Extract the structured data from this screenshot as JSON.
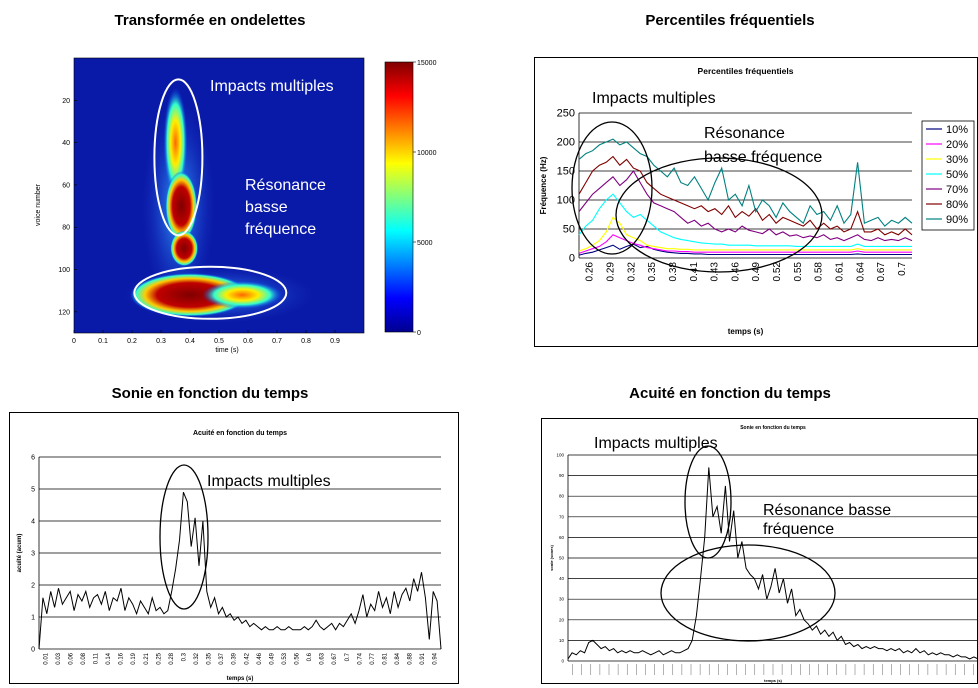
{
  "headings": {
    "wavelet": "Transformée en ondelettes",
    "percentiles": "Percentiles fréquentiels",
    "sonie": "Sonie en fonction du temps",
    "acuite": "Acuité en fonction du temps"
  },
  "chart_data": [
    {
      "type": "heatmap",
      "title": "Transformée en ondelettes",
      "xlabel": "time (s)",
      "ylabel": "voice number",
      "xlim": [
        0,
        1.0
      ],
      "ylim": [
        130,
        0
      ],
      "x_ticks": [
        "0",
        "0.1",
        "0.2",
        "0.3",
        "0.4",
        "0.5",
        "0.6",
        "0.7",
        "0.8",
        "0.9"
      ],
      "y_ticks": [
        "20",
        "40",
        "60",
        "80",
        "100",
        "120"
      ],
      "colorbar_ticks": [
        "15000",
        "10000",
        "5000",
        "0"
      ],
      "colorbar_range": [
        0,
        15000
      ],
      "annotations": [
        "Impacts multiples",
        "Résonance",
        "basse",
        "fréquence"
      ]
    },
    {
      "type": "line",
      "title": "Percentiles fréquentiels",
      "xlabel": "temps (s)",
      "ylabel": "Fréquence (Hz)",
      "ylim": [
        0,
        250
      ],
      "y_ticks": [
        "0",
        "50",
        "100",
        "150",
        "200",
        "250"
      ],
      "x_ticks": [
        "0.26",
        "0.29",
        "0.32",
        "0.35",
        "0.38",
        "0.41",
        "0.43",
        "0.46",
        "0.49",
        "0.52",
        "0.55",
        "0.58",
        "0.61",
        "0.64",
        "0.67",
        "0.7"
      ],
      "annotations": [
        "Impacts multiples",
        "Résonance",
        "basse fréquence"
      ],
      "legend_position": "right",
      "series": [
        {
          "name": "10%",
          "color": "#000080",
          "values": [
            5,
            8,
            10,
            14,
            18,
            22,
            15,
            20,
            24,
            18,
            20,
            15,
            12,
            10,
            9,
            8,
            8,
            7,
            7,
            6,
            6,
            6,
            6,
            6,
            6,
            6,
            6,
            6,
            6,
            6,
            6,
            6,
            6,
            6,
            6,
            6,
            6,
            6,
            6,
            6,
            6,
            7,
            6,
            6,
            6,
            6,
            6,
            6,
            6,
            6
          ]
        },
        {
          "name": "20%",
          "color": "#ff00ff",
          "values": [
            8,
            12,
            16,
            20,
            28,
            40,
            35,
            30,
            25,
            22,
            18,
            16,
            14,
            12,
            12,
            11,
            11,
            10,
            10,
            10,
            10,
            10,
            10,
            10,
            10,
            10,
            10,
            10,
            10,
            10,
            10,
            10,
            10,
            10,
            10,
            10,
            10,
            10,
            10,
            10,
            10,
            12,
            10,
            10,
            10,
            10,
            10,
            10,
            10,
            10
          ]
        },
        {
          "name": "30%",
          "color": "#ffff00",
          "values": [
            12,
            16,
            22,
            30,
            45,
            70,
            60,
            40,
            35,
            30,
            22,
            20,
            18,
            16,
            16,
            15,
            15,
            14,
            14,
            14,
            14,
            14,
            14,
            14,
            14,
            14,
            14,
            14,
            14,
            14,
            14,
            14,
            14,
            14,
            14,
            14,
            14,
            14,
            14,
            14,
            14,
            16,
            14,
            14,
            14,
            14,
            14,
            14,
            14,
            14
          ]
        },
        {
          "name": "50%",
          "color": "#00ffff",
          "values": [
            40,
            55,
            65,
            85,
            100,
            110,
            95,
            80,
            70,
            75,
            65,
            55,
            45,
            40,
            35,
            32,
            30,
            28,
            26,
            25,
            24,
            24,
            22,
            22,
            22,
            22,
            21,
            21,
            21,
            21,
            21,
            21,
            20,
            20,
            20,
            20,
            20,
            20,
            20,
            20,
            20,
            24,
            20,
            20,
            20,
            20,
            20,
            20,
            20,
            20
          ]
        },
        {
          "name": "70%",
          "color": "#800080",
          "values": [
            80,
            95,
            110,
            120,
            130,
            140,
            125,
            135,
            150,
            130,
            110,
            95,
            90,
            85,
            80,
            70,
            60,
            65,
            55,
            60,
            50,
            45,
            50,
            45,
            55,
            48,
            45,
            42,
            50,
            40,
            45,
            38,
            40,
            35,
            38,
            35,
            40,
            32,
            35,
            30,
            35,
            40,
            32,
            30,
            35,
            30,
            32,
            30,
            35,
            30
          ]
        },
        {
          "name": "80%",
          "color": "#800000",
          "values": [
            110,
            130,
            150,
            160,
            165,
            175,
            160,
            170,
            155,
            150,
            130,
            120,
            110,
            105,
            100,
            95,
            90,
            85,
            90,
            80,
            85,
            75,
            90,
            70,
            80,
            72,
            85,
            65,
            75,
            60,
            70,
            65,
            60,
            55,
            65,
            50,
            60,
            50,
            55,
            45,
            50,
            80,
            45,
            45,
            50,
            40,
            45,
            40,
            50,
            40
          ]
        },
        {
          "name": "90%",
          "color": "#008080",
          "values": [
            170,
            180,
            185,
            195,
            200,
            205,
            195,
            200,
            190,
            180,
            175,
            160,
            150,
            140,
            155,
            130,
            125,
            140,
            120,
            100,
            130,
            155,
            100,
            110,
            90,
            125,
            80,
            100,
            90,
            70,
            95,
            80,
            70,
            60,
            90,
            75,
            80,
            65,
            90,
            60,
            75,
            165,
            60,
            65,
            70,
            55,
            65,
            60,
            70,
            60
          ]
        }
      ]
    },
    {
      "type": "line",
      "title": "Acuité en fonction du temps",
      "xlabel": "temps (s)",
      "ylabel": "acuité (acum)",
      "ylim": [
        0,
        6
      ],
      "y_ticks": [
        "0",
        "1",
        "2",
        "3",
        "4",
        "5",
        "6"
      ],
      "x_ticks": [
        "0.01",
        "0.03",
        "0.06",
        "0.08",
        "0.11",
        "0.14",
        "0.16",
        "0.19",
        "0.21",
        "0.25",
        "0.28",
        "0.3",
        "0.32",
        "0.35",
        "0.37",
        "0.39",
        "0.42",
        "0.46",
        "0.49",
        "0.53",
        "0.56",
        "0.6",
        "0.63",
        "0.67",
        "0.7",
        "0.74",
        "0.77",
        "0.81",
        "0.84",
        "0.88",
        "0.91",
        "0.94"
      ],
      "annotations": [
        "Impacts multiples"
      ],
      "series": [
        {
          "name": "",
          "color": "#000000",
          "values": [
            0,
            1.6,
            1.1,
            1.8,
            1.3,
            1.9,
            1.4,
            1.6,
            1.8,
            1.2,
            1.7,
            1.5,
            1.8,
            1.3,
            1.6,
            1.7,
            1.4,
            1.8,
            1.2,
            1.6,
            1.5,
            1.9,
            1.2,
            1.6,
            1.4,
            1.1,
            1.5,
            1.3,
            1.1,
            1.6,
            1.2,
            1.3,
            1.1,
            1.2,
            1.8,
            2.5,
            3.4,
            4.9,
            4.6,
            3.2,
            4.1,
            2.6,
            4.0,
            1.8,
            1.3,
            1.6,
            1.1,
            1.3,
            1.0,
            1.1,
            0.9,
            1.0,
            0.8,
            0.9,
            0.7,
            0.8,
            0.7,
            0.6,
            0.7,
            0.6,
            0.6,
            0.7,
            0.6,
            0.6,
            0.7,
            0.6,
            0.6,
            0.6,
            0.7,
            0.6,
            0.7,
            0.9,
            0.7,
            0.6,
            0.7,
            0.8,
            0.6,
            0.8,
            0.7,
            0.9,
            1.1,
            0.8,
            1.2,
            1.7,
            1.0,
            1.4,
            1.2,
            1.8,
            1.3,
            1.6,
            1.1,
            1.8,
            1.3,
            1.7,
            1.9,
            1.5,
            2.2,
            1.8,
            2.4,
            1.6,
            0.3,
            1.8,
            1.5,
            0
          ]
        }
      ]
    },
    {
      "type": "line",
      "title": "Sonie en fonction du temps",
      "xlabel": "temps (s)",
      "ylabel": "sonie (sones)",
      "ylim": [
        0,
        100
      ],
      "y_ticks": [
        "0",
        "10",
        "20",
        "30",
        "40",
        "50",
        "60",
        "70",
        "80",
        "90",
        "100"
      ],
      "annotations": [
        "Impacts multiples",
        "Résonance basse",
        "fréquence"
      ],
      "series": [
        {
          "name": "",
          "color": "#000000",
          "values": [
            1,
            4,
            3,
            5,
            4,
            9,
            10,
            8,
            6,
            7,
            5,
            6,
            4,
            5,
            4,
            5,
            4,
            4,
            5,
            4,
            3,
            4,
            5,
            3,
            4,
            5,
            4,
            4,
            5,
            6,
            10,
            22,
            40,
            60,
            94,
            70,
            75,
            62,
            85,
            58,
            73,
            50,
            58,
            45,
            42,
            40,
            35,
            42,
            30,
            36,
            45,
            33,
            40,
            28,
            35,
            22,
            25,
            20,
            18,
            15,
            17,
            13,
            15,
            12,
            14,
            10,
            12,
            8,
            9,
            7,
            8,
            6,
            7,
            6,
            7,
            6,
            6,
            5,
            6,
            5,
            6,
            4,
            5,
            4,
            6,
            4,
            5,
            3,
            4,
            3,
            4,
            3,
            3,
            2,
            3,
            2,
            2,
            1,
            2,
            1
          ]
        }
      ]
    }
  ]
}
